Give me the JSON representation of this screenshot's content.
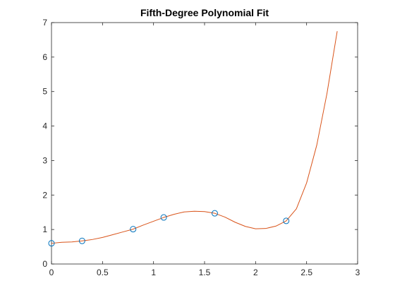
{
  "chart_data": {
    "type": "line",
    "title": "Fifth-Degree Polynomial Fit",
    "xlabel": "",
    "ylabel": "",
    "xlim": [
      0,
      3
    ],
    "ylim": [
      0,
      7
    ],
    "xticks": [
      0,
      0.5,
      1,
      1.5,
      2,
      2.5,
      3
    ],
    "yticks": [
      0,
      1,
      2,
      3,
      4,
      5,
      6,
      7
    ],
    "grid": false,
    "series": [
      {
        "kind": "markers",
        "marker": "circle",
        "color": "#0072BD",
        "x": [
          0,
          0.3,
          0.8,
          1.1,
          1.6,
          2.3
        ],
        "y": [
          0.6,
          0.67,
          1.01,
          1.35,
          1.47,
          1.25
        ]
      },
      {
        "kind": "line",
        "color": "#D95319",
        "x": [
          0,
          0.1,
          0.2,
          0.3,
          0.4,
          0.5,
          0.6,
          0.7,
          0.8,
          0.9,
          1.0,
          1.1,
          1.2,
          1.3,
          1.4,
          1.5,
          1.6,
          1.7,
          1.8,
          1.9,
          2.0,
          2.1,
          2.2,
          2.3,
          2.4,
          2.5,
          2.6,
          2.7,
          2.8
        ],
        "y": [
          0.6,
          0.63,
          0.64,
          0.67,
          0.71,
          0.77,
          0.85,
          0.93,
          1.01,
          1.13,
          1.24,
          1.35,
          1.44,
          1.51,
          1.53,
          1.52,
          1.47,
          1.36,
          1.21,
          1.09,
          1.02,
          1.03,
          1.1,
          1.25,
          1.6,
          2.35,
          3.45,
          4.95,
          6.75
        ]
      }
    ]
  }
}
